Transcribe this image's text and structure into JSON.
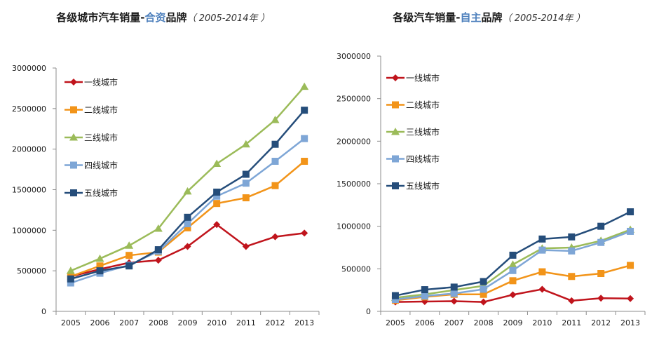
{
  "colors": {
    "tier1": "#c0141c",
    "tier2": "#f29419",
    "tier3": "#9bbb59",
    "tier4": "#7ea6d6",
    "tier5": "#254d7a",
    "axis": "#8c8c8c",
    "title_highlight": "#4f81bd"
  },
  "chart_data": [
    {
      "type": "line",
      "title_prefix": "各级城市汽车销量-",
      "title_highlight": "合资",
      "title_suffix": "品牌",
      "title_years": "（ 2005-2014年 ）",
      "x": [
        "2005",
        "2006",
        "2007",
        "2008",
        "2009",
        "2010",
        "2011",
        "2012",
        "2013"
      ],
      "y_ticks": [
        "0",
        "500000",
        "1000000",
        "1500000",
        "2000000",
        "2500000",
        "3000000"
      ],
      "ylim": [
        0,
        3000000
      ],
      "grid": false,
      "legend_position": "top-left",
      "series": [
        {
          "name": "一线城市",
          "marker": "diamond",
          "color_key": "tier1",
          "values": [
            430000,
            520000,
            600000,
            630000,
            800000,
            1070000,
            800000,
            920000,
            965000
          ]
        },
        {
          "name": "二线城市",
          "marker": "square",
          "color_key": "tier2",
          "values": [
            430000,
            560000,
            690000,
            730000,
            1030000,
            1330000,
            1400000,
            1550000,
            1850000
          ]
        },
        {
          "name": "三线城市",
          "marker": "triangle",
          "color_key": "tier3",
          "values": [
            500000,
            650000,
            810000,
            1020000,
            1480000,
            1820000,
            2060000,
            2360000,
            2770000
          ]
        },
        {
          "name": "四线城市",
          "marker": "square",
          "color_key": "tier4",
          "values": [
            350000,
            470000,
            570000,
            740000,
            1080000,
            1420000,
            1580000,
            1850000,
            2130000
          ]
        },
        {
          "name": "五线城市",
          "marker": "square",
          "color_key": "tier5",
          "values": [
            400000,
            500000,
            560000,
            760000,
            1160000,
            1470000,
            1690000,
            2060000,
            2480000
          ]
        }
      ]
    },
    {
      "type": "line",
      "title_prefix": "各级汽车销量-",
      "title_highlight": "自主",
      "title_suffix": "品牌",
      "title_years": "（ 2005-2014年 ）",
      "x": [
        "2005",
        "2006",
        "2007",
        "2008",
        "2009",
        "2010",
        "2011",
        "2012",
        "2013"
      ],
      "y_ticks": [
        "0",
        "500000",
        "1000000",
        "1500000",
        "2000000",
        "2500000",
        "3000000"
      ],
      "ylim": [
        0,
        3000000
      ],
      "grid": false,
      "legend_position": "top-left",
      "series": [
        {
          "name": "一线城市",
          "marker": "diamond",
          "color_key": "tier1",
          "values": [
            110000,
            115000,
            120000,
            110000,
            195000,
            260000,
            125000,
            155000,
            150000
          ]
        },
        {
          "name": "二线城市",
          "marker": "square",
          "color_key": "tier2",
          "values": [
            130000,
            170000,
            200000,
            200000,
            360000,
            465000,
            410000,
            445000,
            540000
          ]
        },
        {
          "name": "三线城市",
          "marker": "triangle",
          "color_key": "tier3",
          "values": [
            160000,
            200000,
            250000,
            300000,
            550000,
            740000,
            750000,
            830000,
            960000
          ]
        },
        {
          "name": "四线城市",
          "marker": "square",
          "color_key": "tier4",
          "values": [
            140000,
            180000,
            210000,
            260000,
            480000,
            720000,
            710000,
            810000,
            940000
          ]
        },
        {
          "name": "五线城市",
          "marker": "square",
          "color_key": "tier5",
          "values": [
            185000,
            255000,
            285000,
            350000,
            660000,
            850000,
            875000,
            1000000,
            1170000
          ]
        }
      ]
    }
  ]
}
